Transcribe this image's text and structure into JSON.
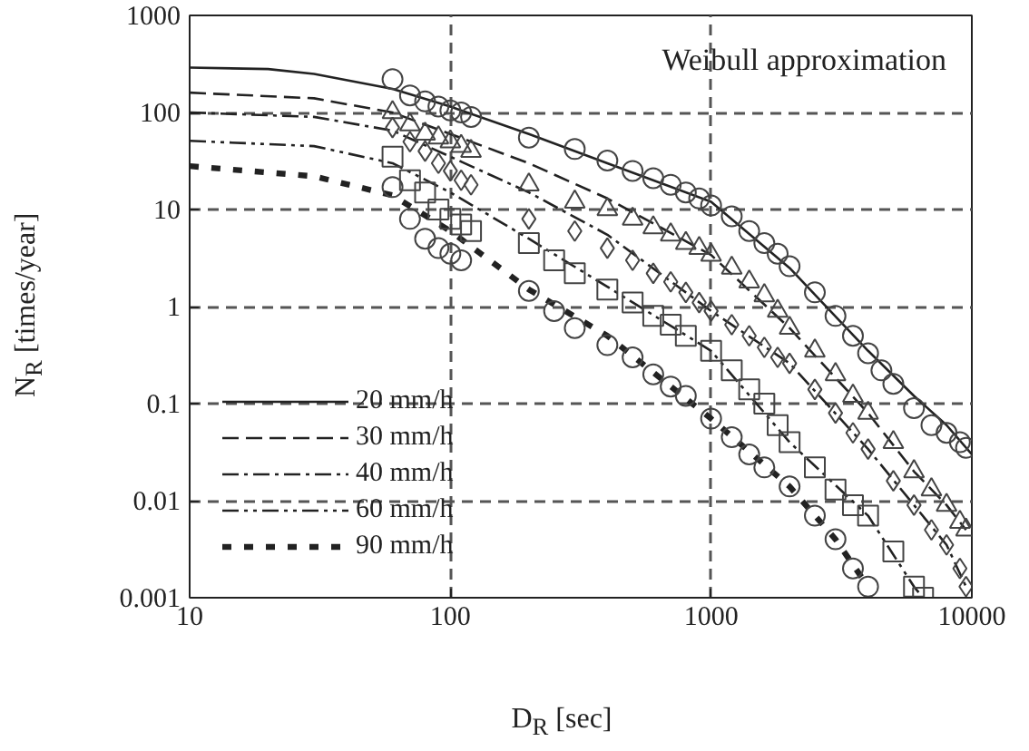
{
  "chart_data": {
    "type": "line",
    "xlabel": "D$_{R}$ [sec]",
    "ylabel": "N$_{R}$ [times/year]",
    "annotations": [
      "Weibull approximation"
    ],
    "log": "xy",
    "xlim": [
      10,
      10000
    ],
    "ylim": [
      0.001,
      1000
    ],
    "xticks": [
      10,
      100,
      1000,
      10000
    ],
    "yticks": [
      0.001,
      0.01,
      0.1,
      1,
      10,
      100,
      1000
    ],
    "grid": true,
    "legend": "bottom left",
    "series": [
      {
        "name": "20 mm/h",
        "type": "line",
        "line_style": "solid",
        "marker": "none",
        "color": "#222222",
        "x": [
          10,
          20,
          30,
          60,
          100,
          200,
          400,
          1000,
          2000,
          4000,
          6000,
          8000,
          10000
        ],
        "values": [
          290,
          280,
          250,
          175,
          115,
          60,
          30,
          12,
          2.5,
          0.35,
          0.12,
          0.06,
          0.03
        ]
      },
      {
        "name": "30 mm/h",
        "type": "line",
        "line_style": "dashed",
        "marker": "none",
        "color": "#222222",
        "x": [
          10,
          30,
          60,
          100,
          200,
          400,
          1000,
          2000,
          4000,
          6000,
          8000,
          9500
        ],
        "values": [
          160,
          140,
          100,
          60,
          30,
          13,
          3.4,
          0.6,
          0.08,
          0.02,
          0.009,
          0.005
        ]
      },
      {
        "name": "40 mm/h",
        "type": "line",
        "line_style": "dashdot",
        "marker": "none",
        "color": "#222222",
        "x": [
          10,
          30,
          60,
          100,
          200,
          400,
          1000,
          2000,
          4000,
          6000,
          8000,
          9500
        ],
        "values": [
          100,
          90,
          65,
          35,
          15,
          5.5,
          0.9,
          0.26,
          0.034,
          0.009,
          0.0035,
          0.0013
        ]
      },
      {
        "name": "60 mm/h",
        "type": "line",
        "line_style": "dashdotdot",
        "marker": "none",
        "color": "#222222",
        "x": [
          10,
          30,
          60,
          100,
          200,
          400,
          1000,
          2000,
          4000,
          6000,
          6500
        ],
        "values": [
          51,
          45,
          30,
          15,
          5,
          1.6,
          0.35,
          0.04,
          0.007,
          0.0013,
          0.001
        ]
      },
      {
        "name": "90 mm/h",
        "type": "line",
        "line_style": "heavy_dashed",
        "marker": "none",
        "color": "#222222",
        "x": [
          10,
          30,
          60,
          100,
          200,
          400,
          1000,
          2000,
          3000,
          4000
        ],
        "values": [
          28,
          22,
          14,
          6,
          1.5,
          0.5,
          0.07,
          0.014,
          0.004,
          0.0013
        ]
      },
      {
        "type": "scatter",
        "marker": "circle",
        "color": "#444444",
        "x": [
          60,
          70,
          80,
          90,
          100,
          110,
          120,
          200,
          300,
          400,
          500,
          600,
          700,
          800,
          900,
          1000,
          1200,
          1400,
          1600,
          1800,
          2000,
          2500,
          3000,
          3500,
          4000,
          4500,
          5000,
          6000,
          7000,
          8000,
          9000,
          9500
        ],
        "values": [
          220,
          150,
          130,
          115,
          105,
          100,
          90,
          55,
          42,
          32,
          25,
          21,
          18,
          15,
          13,
          11,
          8.5,
          6,
          4.5,
          3.5,
          2.6,
          1.4,
          0.8,
          0.5,
          0.33,
          0.22,
          0.16,
          0.09,
          0.06,
          0.05,
          0.04,
          0.035
        ]
      },
      {
        "type": "scatter",
        "marker": "triangle",
        "color": "#444444",
        "x": [
          60,
          70,
          80,
          90,
          100,
          110,
          120,
          200,
          300,
          400,
          500,
          600,
          700,
          800,
          900,
          1000,
          1200,
          1400,
          1600,
          1800,
          2000,
          2500,
          3000,
          3500,
          4000,
          5000,
          6000,
          7000,
          8000,
          9000,
          9500
        ],
        "values": [
          100,
          75,
          60,
          55,
          50,
          45,
          40,
          18,
          12,
          10,
          8,
          6.5,
          5.5,
          4.5,
          4,
          3.4,
          2.5,
          1.8,
          1.3,
          0.9,
          0.6,
          0.35,
          0.2,
          0.12,
          0.08,
          0.04,
          0.02,
          0.013,
          0.009,
          0.006,
          0.005
        ]
      },
      {
        "type": "scatter",
        "marker": "diamond",
        "color": "#444444",
        "x": [
          60,
          70,
          80,
          90,
          100,
          110,
          120,
          200,
          300,
          400,
          500,
          600,
          700,
          800,
          900,
          1000,
          1200,
          1400,
          1600,
          1800,
          2000,
          2500,
          3000,
          3500,
          4000,
          5000,
          6000,
          7000,
          8000,
          9000,
          9500
        ],
        "values": [
          70,
          50,
          40,
          30,
          25,
          20,
          18,
          8,
          6,
          4,
          3,
          2.2,
          1.8,
          1.4,
          1.1,
          0.9,
          0.65,
          0.5,
          0.38,
          0.3,
          0.26,
          0.14,
          0.08,
          0.05,
          0.034,
          0.016,
          0.009,
          0.005,
          0.0035,
          0.002,
          0.0013
        ]
      },
      {
        "type": "scatter",
        "marker": "square",
        "color": "#444444",
        "x": [
          60,
          70,
          80,
          90,
          100,
          110,
          120,
          200,
          250,
          300,
          400,
          500,
          600,
          700,
          800,
          1000,
          1200,
          1400,
          1600,
          1800,
          2000,
          2500,
          3000,
          3500,
          4000,
          5000,
          6000,
          6500
        ],
        "values": [
          35,
          20,
          15,
          10,
          8,
          7,
          6,
          4.5,
          3,
          2.2,
          1.5,
          1.1,
          0.8,
          0.65,
          0.5,
          0.35,
          0.22,
          0.14,
          0.1,
          0.06,
          0.04,
          0.022,
          0.013,
          0.009,
          0.007,
          0.003,
          0.0013,
          0.001
        ]
      },
      {
        "type": "scatter",
        "marker": "circle",
        "color": "#444444",
        "x": [
          60,
          70,
          80,
          90,
          100,
          110,
          200,
          250,
          300,
          400,
          500,
          600,
          700,
          800,
          1000,
          1200,
          1400,
          1600,
          2000,
          2500,
          3000,
          3500,
          4000
        ],
        "values": [
          17,
          8,
          5,
          4,
          3.5,
          3,
          1.45,
          0.9,
          0.6,
          0.4,
          0.3,
          0.2,
          0.15,
          0.12,
          0.07,
          0.045,
          0.03,
          0.022,
          0.014,
          0.007,
          0.004,
          0.002,
          0.0013
        ]
      }
    ]
  }
}
